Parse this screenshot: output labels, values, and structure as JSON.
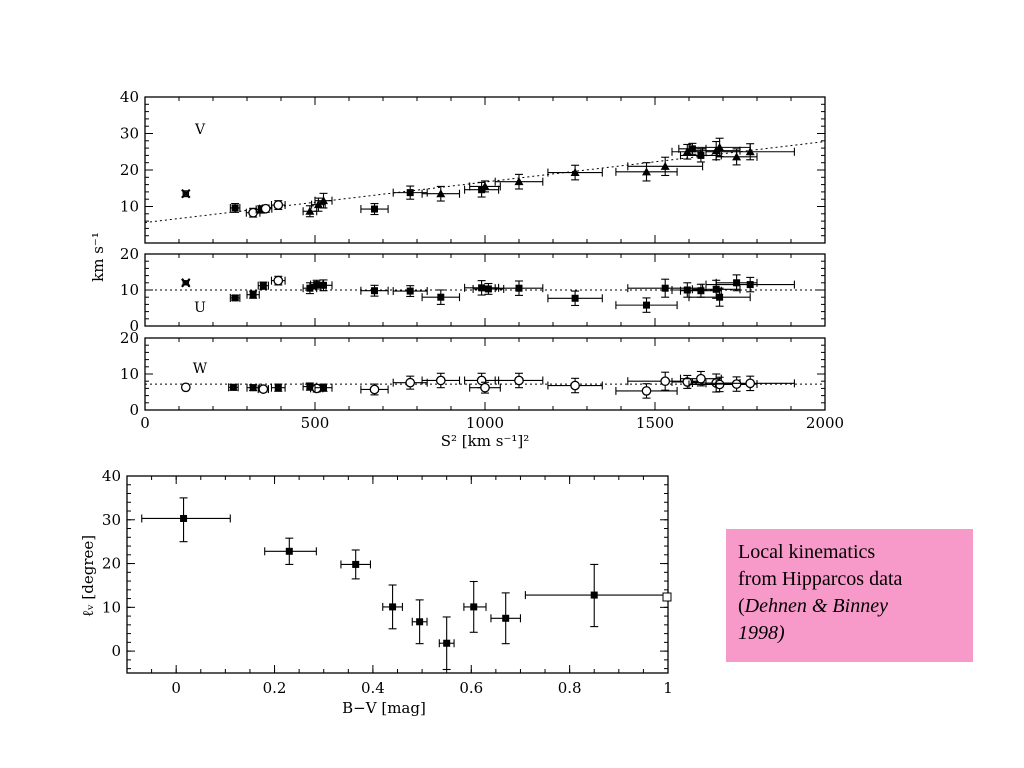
{
  "note": {
    "line1": "Local kinematics",
    "line2": "from Hipparcos data",
    "open_paren": "(",
    "authors": "Dehnen & Binney",
    "year_line": "1998)"
  },
  "chart_data": [
    {
      "type": "scatter",
      "panel": "V",
      "label": "V",
      "ylabel": "km s⁻¹",
      "xlabel": "S²  [km s⁻¹]²",
      "xlim": [
        0,
        2000
      ],
      "ylim": [
        0,
        40
      ],
      "xticks": [
        0,
        500,
        1000,
        1500,
        2000
      ],
      "yticks": [
        10,
        20,
        30,
        40
      ],
      "fit_line": [
        [
          0,
          5.6
        ],
        [
          2000,
          27.8
        ]
      ],
      "points": [
        {
          "x": 120,
          "y": 13.5,
          "xerr": 8,
          "yerr": 0.8,
          "m": "cross"
        },
        {
          "x": 265,
          "y": 9.6,
          "xerr": 14,
          "yerr": 1.2,
          "m": "box"
        },
        {
          "x": 318,
          "y": 8.3,
          "xerr": 20,
          "yerr": 1.2,
          "m": "circle"
        },
        {
          "x": 342,
          "y": 9.2,
          "xerr": 15,
          "yerr": 1.0,
          "m": "box"
        },
        {
          "x": 355,
          "y": 9.4,
          "xerr": 18,
          "yerr": 1.0,
          "m": "circle"
        },
        {
          "x": 392,
          "y": 10.4,
          "xerr": 20,
          "yerr": 1.2,
          "m": "circle"
        },
        {
          "x": 485,
          "y": 8.7,
          "xerr": 20,
          "yerr": 1.5,
          "m": "tri"
        },
        {
          "x": 510,
          "y": 10.5,
          "xerr": 20,
          "yerr": 1.8,
          "m": "tri"
        },
        {
          "x": 525,
          "y": 11.6,
          "xerr": 25,
          "yerr": 2.0,
          "m": "tri"
        },
        {
          "x": 675,
          "y": 9.3,
          "xerr": 40,
          "yerr": 1.5,
          "m": "box"
        },
        {
          "x": 780,
          "y": 13.8,
          "xerr": 50,
          "yerr": 1.8,
          "m": "box"
        },
        {
          "x": 870,
          "y": 13.5,
          "xerr": 55,
          "yerr": 2.0,
          "m": "tri"
        },
        {
          "x": 990,
          "y": 14.6,
          "xerr": 50,
          "yerr": 2.0,
          "m": "box"
        },
        {
          "x": 1000,
          "y": 15.5,
          "xerr": 45,
          "yerr": 1.5,
          "m": "tri"
        },
        {
          "x": 1100,
          "y": 16.8,
          "xerr": 70,
          "yerr": 2.0,
          "m": "tri"
        },
        {
          "x": 1265,
          "y": 19.3,
          "xerr": 80,
          "yerr": 2.0,
          "m": "tri"
        },
        {
          "x": 1475,
          "y": 19.5,
          "xerr": 90,
          "yerr": 2.5,
          "m": "tri"
        },
        {
          "x": 1530,
          "y": 21.0,
          "xerr": 110,
          "yerr": 2.5,
          "m": "tri"
        },
        {
          "x": 1595,
          "y": 25.0,
          "xerr": 45,
          "yerr": 2.0,
          "m": "tri"
        },
        {
          "x": 1610,
          "y": 25.8,
          "xerr": 40,
          "yerr": 1.5,
          "m": "box"
        },
        {
          "x": 1635,
          "y": 24.0,
          "xerr": 60,
          "yerr": 1.8,
          "m": "box"
        },
        {
          "x": 1680,
          "y": 25.3,
          "xerr": 70,
          "yerr": 2.5,
          "m": "tri"
        },
        {
          "x": 1690,
          "y": 26.2,
          "xerr": 90,
          "yerr": 2.5,
          "m": "tri"
        },
        {
          "x": 1740,
          "y": 23.6,
          "xerr": 60,
          "yerr": 2.2,
          "m": "tri"
        },
        {
          "x": 1780,
          "y": 25.0,
          "xerr": 130,
          "yerr": 2.2,
          "m": "tri"
        }
      ]
    },
    {
      "type": "scatter",
      "panel": "U",
      "label": "U",
      "xlim": [
        0,
        2000
      ],
      "ylim": [
        0,
        20
      ],
      "yticks": [
        0,
        10,
        20
      ],
      "fit_line": [
        [
          0,
          10
        ],
        [
          2000,
          10
        ]
      ],
      "points": [
        {
          "x": 120,
          "y": 12.0,
          "xerr": 8,
          "yerr": 0.6,
          "m": "cross"
        },
        {
          "x": 265,
          "y": 7.8,
          "xerr": 14,
          "yerr": 0.6,
          "m": "box"
        },
        {
          "x": 318,
          "y": 8.7,
          "xerr": 18,
          "yerr": 1.0,
          "m": "box"
        },
        {
          "x": 348,
          "y": 11.2,
          "xerr": 15,
          "yerr": 1.0,
          "m": "box"
        },
        {
          "x": 392,
          "y": 12.6,
          "xerr": 20,
          "yerr": 1.2,
          "m": "circle"
        },
        {
          "x": 485,
          "y": 10.5,
          "xerr": 20,
          "yerr": 1.5,
          "m": "box"
        },
        {
          "x": 505,
          "y": 11.5,
          "xerr": 18,
          "yerr": 1.2,
          "m": "box"
        },
        {
          "x": 525,
          "y": 11.3,
          "xerr": 25,
          "yerr": 1.5,
          "m": "box"
        },
        {
          "x": 675,
          "y": 9.8,
          "xerr": 40,
          "yerr": 1.5,
          "m": "box"
        },
        {
          "x": 780,
          "y": 9.7,
          "xerr": 50,
          "yerr": 1.5,
          "m": "box"
        },
        {
          "x": 870,
          "y": 8.0,
          "xerr": 55,
          "yerr": 2.0,
          "m": "box"
        },
        {
          "x": 990,
          "y": 10.6,
          "xerr": 50,
          "yerr": 2.0,
          "m": "box"
        },
        {
          "x": 1010,
          "y": 10.3,
          "xerr": 45,
          "yerr": 1.5,
          "m": "box"
        },
        {
          "x": 1100,
          "y": 10.5,
          "xerr": 70,
          "yerr": 2.0,
          "m": "box"
        },
        {
          "x": 1265,
          "y": 7.7,
          "xerr": 80,
          "yerr": 2.0,
          "m": "box"
        },
        {
          "x": 1475,
          "y": 5.8,
          "xerr": 90,
          "yerr": 2.0,
          "m": "box"
        },
        {
          "x": 1530,
          "y": 10.5,
          "xerr": 110,
          "yerr": 2.5,
          "m": "box"
        },
        {
          "x": 1595,
          "y": 10.0,
          "xerr": 45,
          "yerr": 2.0,
          "m": "box"
        },
        {
          "x": 1635,
          "y": 9.8,
          "xerr": 60,
          "yerr": 1.8,
          "m": "box"
        },
        {
          "x": 1680,
          "y": 10.2,
          "xerr": 70,
          "yerr": 2.5,
          "m": "box"
        },
        {
          "x": 1690,
          "y": 8.0,
          "xerr": 90,
          "yerr": 2.5,
          "m": "box"
        },
        {
          "x": 1740,
          "y": 12.0,
          "xerr": 60,
          "yerr": 2.2,
          "m": "box"
        },
        {
          "x": 1780,
          "y": 11.5,
          "xerr": 130,
          "yerr": 2.0,
          "m": "box"
        }
      ]
    },
    {
      "type": "scatter",
      "panel": "W",
      "label": "W",
      "xlim": [
        0,
        2000
      ],
      "ylim": [
        0,
        20
      ],
      "yticks": [
        0,
        10,
        20
      ],
      "xticks": [
        0,
        500,
        1000,
        1500,
        2000
      ],
      "fit_line": [
        [
          0,
          7.2
        ],
        [
          2000,
          7.2
        ]
      ],
      "points": [
        {
          "x": 120,
          "y": 6.3,
          "xerr": 8,
          "yerr": 0.5,
          "m": "circle"
        },
        {
          "x": 260,
          "y": 6.3,
          "xerr": 14,
          "yerr": 0.8,
          "m": "box"
        },
        {
          "x": 318,
          "y": 6.2,
          "xerr": 18,
          "yerr": 0.8,
          "m": "box"
        },
        {
          "x": 348,
          "y": 5.8,
          "xerr": 15,
          "yerr": 0.8,
          "m": "circle"
        },
        {
          "x": 392,
          "y": 6.2,
          "xerr": 20,
          "yerr": 1.0,
          "m": "box"
        },
        {
          "x": 485,
          "y": 6.5,
          "xerr": 20,
          "yerr": 1.0,
          "m": "box"
        },
        {
          "x": 505,
          "y": 6.0,
          "xerr": 18,
          "yerr": 1.0,
          "m": "circle"
        },
        {
          "x": 525,
          "y": 6.2,
          "xerr": 25,
          "yerr": 1.0,
          "m": "box"
        },
        {
          "x": 675,
          "y": 5.7,
          "xerr": 40,
          "yerr": 1.5,
          "m": "circle"
        },
        {
          "x": 780,
          "y": 7.6,
          "xerr": 50,
          "yerr": 1.8,
          "m": "circle"
        },
        {
          "x": 870,
          "y": 8.2,
          "xerr": 55,
          "yerr": 2.0,
          "m": "circle"
        },
        {
          "x": 990,
          "y": 8.2,
          "xerr": 50,
          "yerr": 2.0,
          "m": "circle"
        },
        {
          "x": 1000,
          "y": 6.2,
          "xerr": 45,
          "yerr": 1.5,
          "m": "circle"
        },
        {
          "x": 1100,
          "y": 8.2,
          "xerr": 70,
          "yerr": 2.0,
          "m": "circle"
        },
        {
          "x": 1265,
          "y": 6.8,
          "xerr": 80,
          "yerr": 2.0,
          "m": "circle"
        },
        {
          "x": 1475,
          "y": 5.3,
          "xerr": 90,
          "yerr": 2.0,
          "m": "circle"
        },
        {
          "x": 1530,
          "y": 8.0,
          "xerr": 110,
          "yerr": 2.5,
          "m": "circle"
        },
        {
          "x": 1595,
          "y": 7.8,
          "xerr": 45,
          "yerr": 1.8,
          "m": "circle"
        },
        {
          "x": 1635,
          "y": 8.7,
          "xerr": 60,
          "yerr": 2.0,
          "m": "circle"
        },
        {
          "x": 1680,
          "y": 7.5,
          "xerr": 70,
          "yerr": 2.5,
          "m": "circle"
        },
        {
          "x": 1690,
          "y": 7.1,
          "xerr": 90,
          "yerr": 2.0,
          "m": "circle"
        },
        {
          "x": 1740,
          "y": 7.2,
          "xerr": 60,
          "yerr": 2.0,
          "m": "circle"
        },
        {
          "x": 1780,
          "y": 7.4,
          "xerr": 130,
          "yerr": 2.0,
          "m": "circle"
        }
      ]
    },
    {
      "type": "scatter",
      "panel": "lv",
      "ylabel": "ℓᵥ [degree]",
      "xlabel": "B−V [mag]",
      "xlim": [
        -0.1,
        1.0
      ],
      "ylim": [
        -5,
        40
      ],
      "xticks": [
        0,
        0.2,
        0.4,
        0.6,
        0.8,
        1
      ],
      "xticklabels": [
        "0",
        "0.2",
        "0.4",
        "0.6",
        "0.8",
        "1"
      ],
      "yticks": [
        0,
        10,
        20,
        30,
        40
      ],
      "points": [
        {
          "x": 0.015,
          "y": 30.3,
          "xl": 0.085,
          "xh": 0.095,
          "yl": 5.3,
          "yh": 4.7,
          "m": "box"
        },
        {
          "x": 0.23,
          "y": 22.8,
          "xl": 0.05,
          "xh": 0.055,
          "yl": 3.0,
          "yh": 3.0,
          "m": "box"
        },
        {
          "x": 0.365,
          "y": 19.8,
          "xl": 0.03,
          "xh": 0.03,
          "yl": 3.3,
          "yh": 3.3,
          "m": "box"
        },
        {
          "x": 0.44,
          "y": 10.1,
          "xl": 0.02,
          "xh": 0.02,
          "yl": 5.0,
          "yh": 5.0,
          "m": "box"
        },
        {
          "x": 0.495,
          "y": 6.7,
          "xl": 0.015,
          "xh": 0.015,
          "yl": 5.0,
          "yh": 5.0,
          "m": "box"
        },
        {
          "x": 0.55,
          "y": 1.8,
          "xl": 0.015,
          "xh": 0.015,
          "yl": 6.0,
          "yh": 6.0,
          "m": "box"
        },
        {
          "x": 0.605,
          "y": 10.1,
          "xl": 0.02,
          "xh": 0.025,
          "yl": 5.8,
          "yh": 5.8,
          "m": "box"
        },
        {
          "x": 0.67,
          "y": 7.5,
          "xl": 0.03,
          "xh": 0.03,
          "yl": 5.8,
          "yh": 5.8,
          "m": "box"
        },
        {
          "x": 0.85,
          "y": 12.8,
          "xl": 0.14,
          "xh": 0.15,
          "yl": 7.2,
          "yh": 7.0,
          "m": "box"
        }
      ]
    }
  ]
}
